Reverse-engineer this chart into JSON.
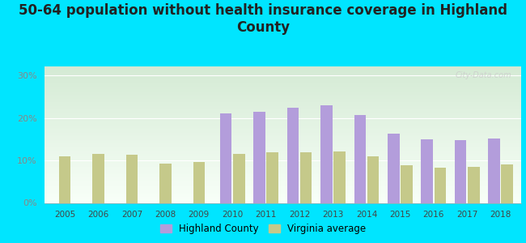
{
  "title": "50-64 population without health insurance coverage in Highland\nCounty",
  "years": [
    2005,
    2006,
    2007,
    2008,
    2009,
    2010,
    2011,
    2012,
    2013,
    2014,
    2015,
    2016,
    2017,
    2018
  ],
  "highland_county": [
    null,
    null,
    null,
    null,
    null,
    21.0,
    21.5,
    22.3,
    23.0,
    20.7,
    16.3,
    14.9,
    14.8,
    15.2
  ],
  "virginia_avg": [
    11.0,
    11.5,
    11.3,
    9.3,
    9.7,
    11.5,
    11.9,
    11.9,
    12.1,
    10.9,
    8.9,
    8.3,
    8.5,
    9.0
  ],
  "highland_color": "#b39ddb",
  "virginia_color": "#c5c98a",
  "bg_color": "#00e5ff",
  "grad_top": "#d4ead4",
  "grad_bottom": "#f8fff8",
  "bar_width": 0.35,
  "ylim": [
    0,
    32
  ],
  "yticks": [
    0,
    10,
    20,
    30
  ],
  "ytick_labels": [
    "0%",
    "10%",
    "20%",
    "30%"
  ],
  "title_fontsize": 12,
  "legend_label_highland": "Highland County",
  "legend_label_virginia": "Virginia average",
  "watermark": "City-Data.com"
}
